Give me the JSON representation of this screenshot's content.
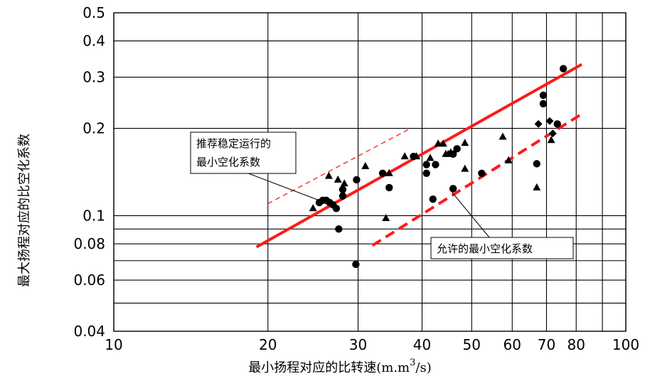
{
  "chart_data": {
    "type": "scatter",
    "title": "",
    "x_scale": "log",
    "y_scale": "log",
    "xlim": [
      10,
      100
    ],
    "ylim": [
      0.04,
      0.5
    ],
    "xlabel_main": "最小扬程对应的比转速(m.m",
    "xlabel_sup": "3",
    "xlabel_tail": "/s)",
    "ylabel": "最大扬程对应的比空化系数",
    "x_ticks": [
      10,
      20,
      30,
      40,
      50,
      60,
      70,
      80,
      100
    ],
    "x_tick_labels": [
      "10",
      "20",
      "30",
      "40",
      "50",
      "60",
      "70",
      "80",
      "100"
    ],
    "y_ticks": [
      0.04,
      0.06,
      0.08,
      0.1,
      0.2,
      0.3,
      0.4,
      0.5
    ],
    "y_tick_labels": [
      "0.04",
      "0.06",
      "0.08",
      "0.1",
      "0.2",
      "0.3",
      "0.4",
      "0.5"
    ],
    "x_grid": [
      10,
      20,
      30,
      40,
      50,
      60,
      70,
      80,
      90,
      100
    ],
    "y_grid": [
      0.04,
      0.05,
      0.06,
      0.07,
      0.08,
      0.09,
      0.1,
      0.2,
      0.3,
      0.4,
      0.5
    ],
    "grid": true,
    "colors": {
      "lines": "#ff1a1a",
      "points": "#000000"
    },
    "series": [
      {
        "kind": "circle",
        "points": [
          [
            25.2,
            0.111
          ],
          [
            25.6,
            0.113
          ],
          [
            26.0,
            0.113
          ],
          [
            26.4,
            0.111
          ],
          [
            26.8,
            0.109
          ],
          [
            27.2,
            0.106
          ],
          [
            28.0,
            0.123
          ],
          [
            28.0,
            0.117
          ],
          [
            27.5,
            0.09
          ],
          [
            29.7,
            0.068
          ],
          [
            29.8,
            0.133
          ],
          [
            33.5,
            0.14
          ],
          [
            34.5,
            0.125
          ],
          [
            38.5,
            0.16
          ],
          [
            40.8,
            0.15
          ],
          [
            40.8,
            0.14
          ],
          [
            42.0,
            0.114
          ],
          [
            42.5,
            0.15
          ],
          [
            46.0,
            0.163
          ],
          [
            46.0,
            0.124
          ],
          [
            46.8,
            0.17
          ],
          [
            52.3,
            0.14
          ],
          [
            67.0,
            0.151
          ],
          [
            69.0,
            0.26
          ],
          [
            69.0,
            0.243
          ],
          [
            73.5,
            0.207
          ],
          [
            75.5,
            0.321
          ]
        ]
      },
      {
        "kind": "triangle",
        "points": [
          [
            24.5,
            0.106
          ],
          [
            26.3,
            0.137
          ],
          [
            27.4,
            0.133
          ],
          [
            28.2,
            0.129
          ],
          [
            31.0,
            0.148
          ],
          [
            34.0,
            0.098
          ],
          [
            34.5,
            0.14
          ],
          [
            37.0,
            0.16
          ],
          [
            39.0,
            0.16
          ],
          [
            41.5,
            0.158
          ],
          [
            43.0,
            0.177
          ],
          [
            44.0,
            0.177
          ],
          [
            44.5,
            0.163
          ],
          [
            45.0,
            0.163
          ],
          [
            45.5,
            0.165
          ],
          [
            48.5,
            0.178
          ],
          [
            48.5,
            0.145
          ],
          [
            57.5,
            0.187
          ],
          [
            59.0,
            0.155
          ],
          [
            67.0,
            0.125
          ],
          [
            71.5,
            0.182
          ]
        ]
      },
      {
        "kind": "diamond",
        "points": [
          [
            67.5,
            0.207
          ],
          [
            71.0,
            0.212
          ],
          [
            72.0,
            0.192
          ]
        ]
      }
    ],
    "lines": [
      {
        "style": "solid",
        "from": [
          19,
          0.078
        ],
        "to": [
          82,
          0.332
        ]
      },
      {
        "style": "dashed",
        "from": [
          32,
          0.079
        ],
        "to": [
          82,
          0.224
        ]
      },
      {
        "style": "dashed-thin",
        "from": [
          20,
          0.11
        ],
        "to": [
          38,
          0.2
        ]
      }
    ],
    "annotations": [
      {
        "lines": [
          "推荐稳定运行的",
          "最小空化系数"
        ],
        "box": "top-left",
        "arrow_to": [
          25.5,
          0.112
        ]
      },
      {
        "lines": [
          "允许的最小空化系数"
        ],
        "box": "bottom-right",
        "arrow_to": [
          45.5,
          0.122
        ]
      }
    ]
  }
}
